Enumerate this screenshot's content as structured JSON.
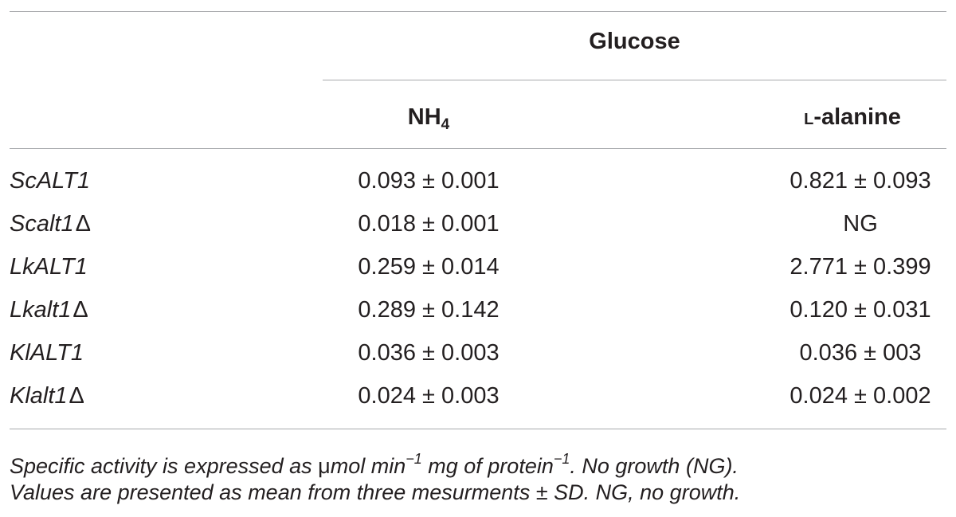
{
  "table": {
    "group_header": "Glucose",
    "col1_header_main": "NH",
    "col1_header_sub": "4",
    "col2_header_prefix": "l",
    "col2_header_rest": "-alanine",
    "rows": [
      {
        "gene": "ScALT1",
        "suffix": "",
        "nh4": "0.093 ± 0.001",
        "alanine": "0.821 ± 0.093"
      },
      {
        "gene": "Scalt1",
        "suffix": "Δ",
        "nh4": "0.018 ± 0.001",
        "alanine": "NG"
      },
      {
        "gene": "LkALT1",
        "suffix": "",
        "nh4": "0.259 ± 0.014",
        "alanine": "2.771 ± 0.399"
      },
      {
        "gene": "Lkalt1",
        "suffix": "Δ",
        "nh4": "0.289 ± 0.142",
        "alanine": "0.120 ± 0.031"
      },
      {
        "gene": "KlALT1",
        "suffix": "",
        "nh4": "0.036 ± 0.003",
        "alanine": "0.036 ± 003"
      },
      {
        "gene": "Klalt1",
        "suffix": "Δ",
        "nh4": "0.024 ± 0.003",
        "alanine": "0.024 ± 0.002"
      }
    ]
  },
  "footnote": {
    "line1_a": "Specific activity is expressed as ",
    "line1_mu": "μ",
    "line1_b": "mol min",
    "line1_sup1": "−1",
    "line1_c": " mg of protein",
    "line1_sup2": "−1",
    "line1_d": ". No growth (NG).",
    "line2": "Values are presented as mean from three mesurments ± SD. NG, no growth."
  }
}
